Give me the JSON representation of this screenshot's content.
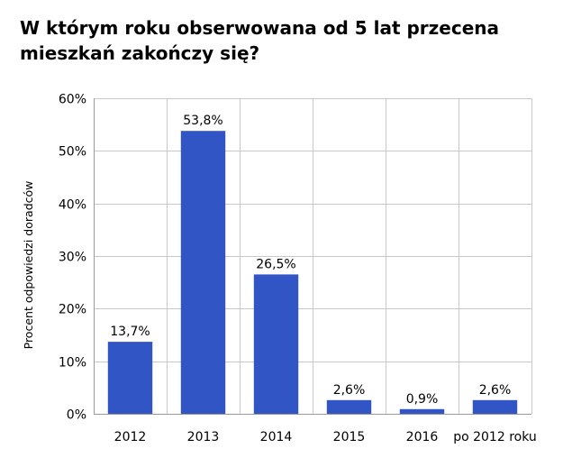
{
  "chart_data": {
    "type": "bar",
    "title_lines": [
      "W którym roku obserwowana od 5 lat przecena",
      "mieszkań zakończy się?"
    ],
    "categories": [
      "2012",
      "2013",
      "2014",
      "2015",
      "2016",
      "po 2012 roku"
    ],
    "values": [
      13.7,
      53.8,
      26.5,
      2.6,
      0.9,
      2.6
    ],
    "data_labels": [
      "13,7%",
      "53,8%",
      "26,5%",
      "2,6%",
      "0,9%",
      "2,6%"
    ],
    "ylabel": "Procent odpowiedzi doradców",
    "xlabel": "",
    "ylim": [
      0,
      60
    ],
    "yticks": [
      0,
      10,
      20,
      30,
      40,
      50,
      60
    ],
    "ytick_labels": [
      "0%",
      "10%",
      "20%",
      "30%",
      "40%",
      "50%",
      "60%"
    ],
    "grid": true,
    "bar_color": "#3155c4",
    "grid_color": "#c8c8c8",
    "axis_color": "#9a9a9a"
  }
}
